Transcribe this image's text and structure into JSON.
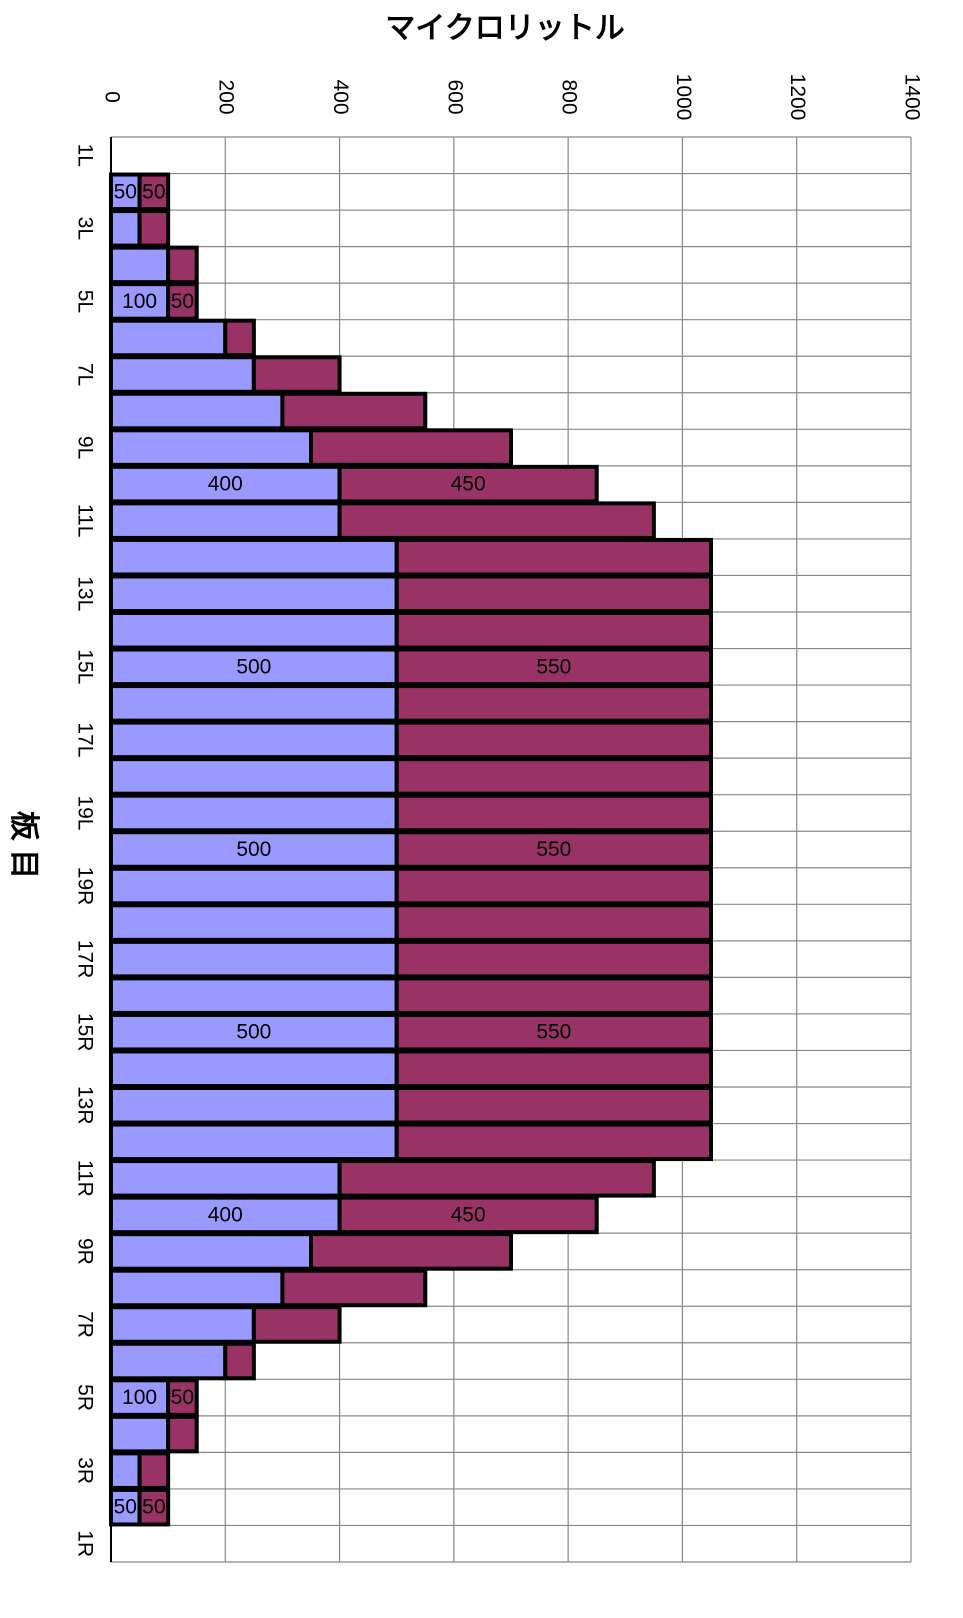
{
  "chart_data": {
    "type": "stacked-bar",
    "orientation": "horizontal",
    "title": "マイクロリットル",
    "y_label": "板 目",
    "categories": [
      "1L",
      null,
      "3L",
      null,
      "5L",
      null,
      "7L",
      null,
      "9L",
      null,
      "11L",
      null,
      "13L",
      null,
      "15L",
      null,
      "17L",
      null,
      "19L",
      null,
      "19R",
      null,
      "17R",
      null,
      "15R",
      null,
      "13R",
      null,
      "11R",
      null,
      "9R",
      null,
      "7R",
      null,
      "5R",
      null,
      "3R",
      null,
      "1R"
    ],
    "series": [
      {
        "color": "#9999ff",
        "values": [
          null,
          50,
          50,
          100,
          100,
          200,
          250,
          300,
          350,
          400,
          400,
          500,
          500,
          500,
          500,
          500,
          500,
          500,
          500,
          500,
          500,
          500,
          500,
          500,
          500,
          500,
          500,
          500,
          400,
          400,
          350,
          300,
          250,
          200,
          100,
          100,
          50,
          50,
          null
        ],
        "value_labels": [
          null,
          50,
          null,
          null,
          100,
          null,
          null,
          null,
          null,
          400,
          null,
          null,
          null,
          null,
          500,
          null,
          null,
          null,
          null,
          500,
          null,
          null,
          null,
          null,
          500,
          null,
          null,
          null,
          null,
          400,
          null,
          null,
          null,
          null,
          100,
          null,
          null,
          50,
          null
        ]
      },
      {
        "color": "#993366",
        "values": [
          null,
          50,
          50,
          50,
          50,
          50,
          150,
          250,
          350,
          450,
          550,
          550,
          550,
          550,
          550,
          550,
          550,
          550,
          550,
          550,
          550,
          550,
          550,
          550,
          550,
          550,
          550,
          550,
          550,
          450,
          350,
          250,
          150,
          50,
          50,
          50,
          50,
          50,
          null
        ],
        "value_labels": [
          null,
          50,
          null,
          null,
          50,
          null,
          null,
          null,
          null,
          450,
          null,
          null,
          null,
          null,
          550,
          null,
          null,
          null,
          null,
          550,
          null,
          null,
          null,
          null,
          550,
          null,
          null,
          null,
          null,
          450,
          null,
          null,
          null,
          null,
          50,
          null,
          null,
          50,
          null
        ]
      }
    ],
    "xlim": [
      0,
      1400
    ],
    "xticks": [
      0,
      200,
      400,
      600,
      800,
      1000,
      1200,
      1400
    ],
    "grid": true
  }
}
